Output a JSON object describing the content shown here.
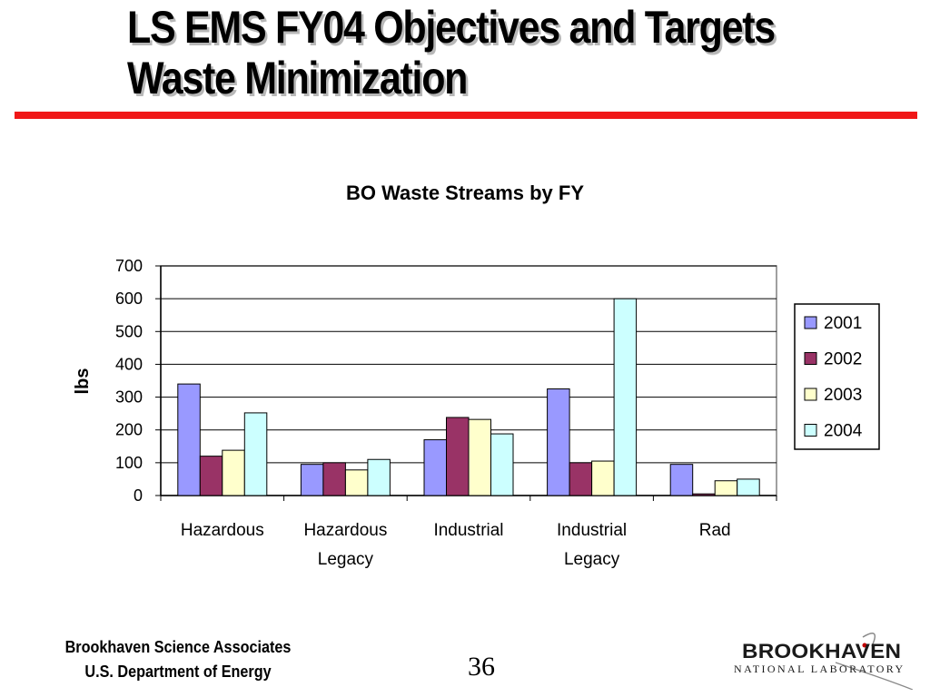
{
  "slide": {
    "title_line1": "LS EMS FY04 Objectives and Targets",
    "title_line2": "Waste Minimization"
  },
  "footer": {
    "org_line1": "Brookhaven Science Associates",
    "org_line2": "U.S. Department of Energy",
    "page_number": "36",
    "logo_word": "BROOKHAVEN",
    "logo_sub": "NATIONAL LABORATORY"
  },
  "chart_data": {
    "type": "bar",
    "title": "BO Waste Streams by FY",
    "xlabel": "",
    "ylabel": "lbs",
    "ylim": [
      0,
      700
    ],
    "yticks": [
      0,
      100,
      200,
      300,
      400,
      500,
      600,
      700
    ],
    "categories": [
      [
        "Hazardous"
      ],
      [
        "Hazardous",
        "Legacy"
      ],
      [
        "Industrial"
      ],
      [
        "Industrial",
        "Legacy"
      ],
      [
        "Rad"
      ]
    ],
    "series": [
      {
        "name": "2001",
        "color": "#9999ff",
        "values": [
          340,
          95,
          170,
          325,
          95
        ]
      },
      {
        "name": "2002",
        "color": "#993366",
        "values": [
          120,
          100,
          238,
          100,
          5
        ]
      },
      {
        "name": "2003",
        "color": "#ffffcc",
        "values": [
          138,
          78,
          232,
          105,
          45
        ]
      },
      {
        "name": "2004",
        "color": "#ccffff",
        "values": [
          252,
          110,
          188,
          600,
          50
        ]
      }
    ],
    "grid": true,
    "legend_position": "right"
  }
}
